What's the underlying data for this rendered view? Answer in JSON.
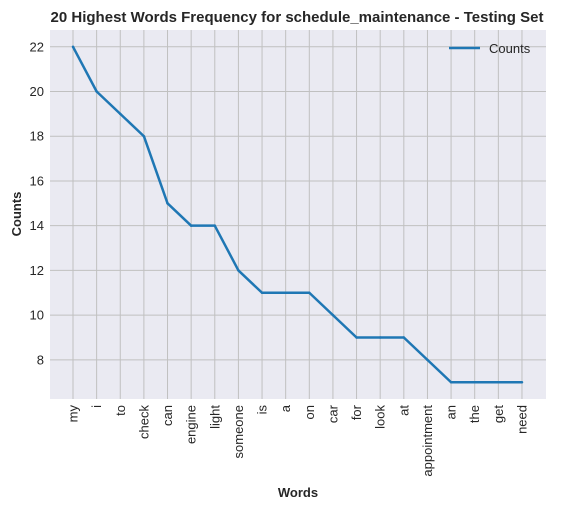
{
  "chart_data": {
    "type": "line",
    "title": "20 Highest Words Frequency for schedule_maintenance - Testing Set",
    "xlabel": "Words",
    "ylabel": "Counts",
    "categories": [
      "my",
      "i",
      "to",
      "check",
      "can",
      "engine",
      "light",
      "someone",
      "is",
      "a",
      "on",
      "car",
      "for",
      "look",
      "at",
      "appointment",
      "an",
      "the",
      "get",
      "need"
    ],
    "series": [
      {
        "name": "Counts",
        "values": [
          22,
          20,
          19,
          18,
          15,
          14,
          14,
          12,
          11,
          11,
          11,
          10,
          9,
          9,
          9,
          8,
          7,
          7,
          7,
          7
        ],
        "color": "#1f77b4"
      }
    ],
    "ylim": [
      6.25,
      22.75
    ],
    "yticks": [
      8,
      10,
      12,
      14,
      16,
      18,
      20,
      22
    ],
    "grid": true,
    "legend": "top-right",
    "colors": {
      "plot_background": "#eaeaf2",
      "grid": "#c0c0c0",
      "line": "#1f77b4"
    }
  }
}
